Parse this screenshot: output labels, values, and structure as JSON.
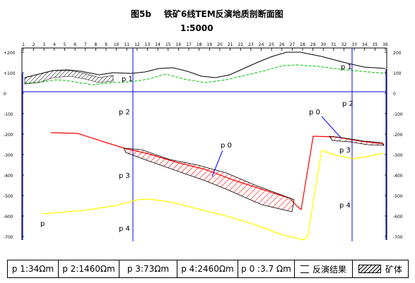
{
  "figure": {
    "label": "图5b",
    "title": "铁矿6线TEM反演地质剖断面图",
    "scale": "1:5000"
  },
  "x_axis": {
    "ticks": [
      "1",
      "2",
      "3",
      "4",
      "5",
      "6",
      "7",
      "8",
      "9",
      "10",
      "11",
      "12",
      "13",
      "14",
      "15",
      "16",
      "17",
      "18",
      "19",
      "20",
      "21",
      "22",
      "23",
      "24",
      "25",
      "26",
      "27",
      "28",
      "29",
      "30",
      "31",
      "32",
      "33",
      "34",
      "35",
      "36"
    ]
  },
  "y_axis": {
    "ticks": [
      "+200",
      "+100",
      "0",
      "-100",
      "-200",
      "-300",
      "-400",
      "-500",
      "-600",
      "-700"
    ],
    "ticks_right": [
      "200",
      "100",
      "0",
      "-100",
      "-200",
      "-300",
      "-400",
      "-500",
      "-600",
      "-700"
    ],
    "range": [
      -700,
      200
    ]
  },
  "annotations": {
    "p1_left": "p 1",
    "p1_right": "p 1",
    "p2_left": "p 2",
    "p2_right": "p 2",
    "p3_left": "p 3",
    "p3_right": "p 3",
    "p4_left": "p 4",
    "p4_right": "p 4",
    "p0_left": "p 0",
    "p0_right": "p 0",
    "p_bottom": "p"
  },
  "legend": {
    "p1": "p 1:34Ωm",
    "p2": "p 2:1460Ωm",
    "p3": "p 3:73Ωm",
    "p4": "p 4:2460Ωm",
    "p0": "p 0 :3.7 Ωm",
    "inversion": "反演结果",
    "ore": "矿体"
  },
  "colors": {
    "surface": "#000000",
    "p1_boundary": "#00c000",
    "p0_boundary": "#ff0000",
    "p4_boundary": "#ffff00",
    "inversion_lines": "#0000ff",
    "zero_line": "#0000ff"
  }
}
